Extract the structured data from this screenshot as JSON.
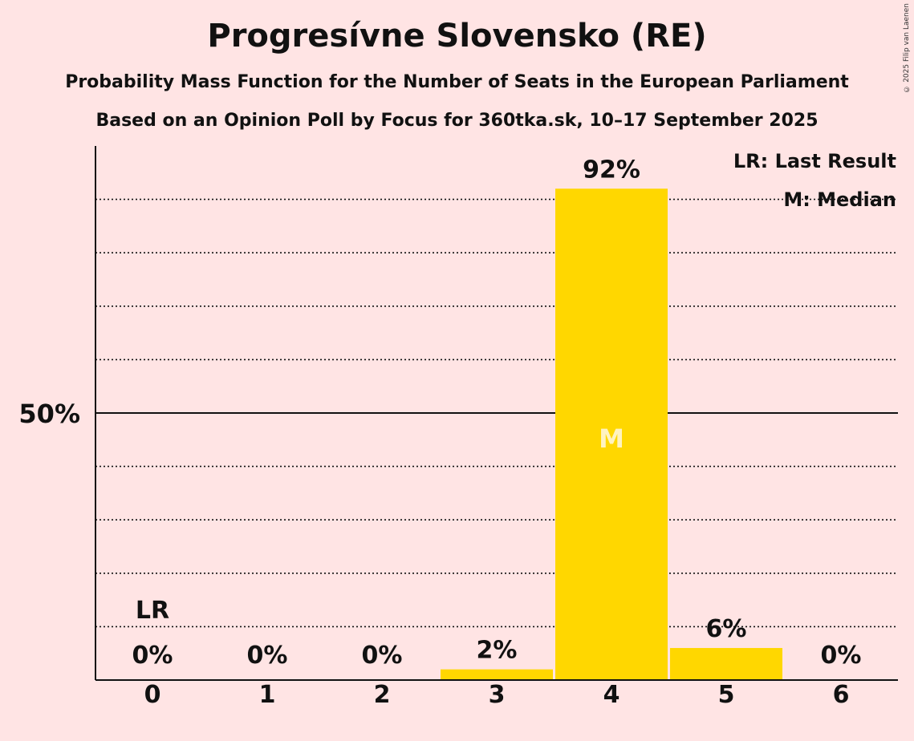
{
  "title": "Progresívne Slovensko (RE)",
  "subtitle": "Probability Mass Function for the Number of Seats in the European Parliament",
  "subtitle2": "Based on an Opinion Poll by Focus for 360tka.sk, 10–17 September 2025",
  "copyright": "© 2025 Filip van Laenen",
  "legend": {
    "last_result": "LR: Last Result",
    "median": "M: Median"
  },
  "colors": {
    "background": "#FFE4E4",
    "bar": "#FFD700",
    "text": "#111111"
  },
  "chart_data": {
    "type": "bar",
    "categories": [
      "0",
      "1",
      "2",
      "3",
      "4",
      "5",
      "6"
    ],
    "values": [
      0,
      0,
      0,
      2,
      92,
      6,
      0
    ],
    "value_labels": [
      "0%",
      "0%",
      "0%",
      "2%",
      "92%",
      "6%",
      "0%"
    ],
    "ylim": [
      0,
      100
    ],
    "ytick_label": "50%",
    "ytick_value": 50,
    "gridlines": [
      10,
      20,
      30,
      40,
      60,
      70,
      80,
      90
    ],
    "last_result_category": "0",
    "last_result_label": "LR",
    "median_category": "4",
    "median_label": "M",
    "legend_position": "top-right"
  }
}
